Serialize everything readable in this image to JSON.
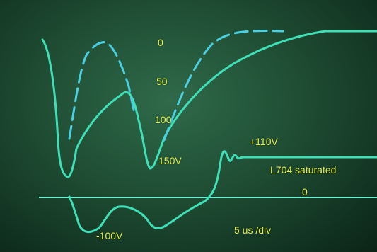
{
  "chart_data": {
    "type": "line",
    "grid": false,
    "colors": {
      "trace": "#3fe0b8",
      "trace_dashed": "#4ad0e0",
      "label": "#e3ee4a"
    },
    "series": [
      {
        "style": "solid",
        "x": [
          0.2,
          0.6,
          1.0,
          1.4,
          1.8,
          2.2,
          2.6,
          3.0,
          3.4,
          3.8,
          4.2,
          4.6,
          5.0,
          5.4,
          5.8,
          6.2,
          6.6,
          7.0,
          7.4,
          7.8,
          8.2,
          8.6,
          9.0,
          9.4,
          9.8
        ],
        "y": [
          -95,
          -95,
          -98,
          -95,
          -88,
          -93,
          -110,
          -120,
          -118,
          -112,
          -105,
          -95,
          -86,
          -72,
          -60,
          -50,
          -46,
          -46,
          -48,
          -50,
          -48,
          -47,
          -47,
          -47,
          -47
        ]
      },
      {
        "style": "solid",
        "x": [
          0.2,
          0.6,
          1.0,
          1.4,
          1.8,
          2.2,
          2.6,
          3.0,
          3.4,
          3.8,
          4.2,
          4.6,
          5.0,
          5.4,
          5.8,
          6.2,
          6.6,
          7.0,
          7.4,
          7.8,
          8.2,
          8.6,
          9.0,
          9.4,
          9.8
        ],
        "y": [
          -75,
          -20,
          -30,
          -25,
          -10,
          -5,
          -12,
          -18,
          -28,
          -22,
          -10,
          -50,
          -175,
          -90,
          -110,
          -105,
          -110,
          -110,
          -110,
          -110,
          -110,
          -110,
          -110,
          -110,
          -110
        ]
      },
      {
        "style": "solid",
        "x": [
          0.0,
          0.4,
          0.8,
          1.2,
          1.6,
          2.0,
          2.4,
          2.6,
          3.0,
          3.4,
          3.8,
          4.2,
          4.6,
          5.0,
          5.4,
          5.8,
          6.2,
          6.6,
          7.0,
          7.4,
          7.8,
          8.2,
          8.6,
          9.0,
          9.4,
          9.8
        ],
        "y": [
          160,
          175,
          110,
          70,
          60,
          70,
          150,
          155,
          100,
          70,
          45,
          30,
          20,
          12,
          8,
          4,
          0,
          0,
          0,
          0,
          0,
          0,
          0,
          0,
          0,
          0
        ]
      },
      {
        "style": "dashed",
        "x": [
          0.4,
          0.8,
          1.2,
          1.6,
          2.0,
          2.4,
          2.6,
          3.0,
          3.4,
          3.8,
          4.2
        ],
        "y": [
          175,
          90,
          10,
          -5,
          30,
          150,
          155,
          60,
          20,
          0,
          -5
        ]
      }
    ],
    "annotations": [
      "0",
      "50",
      "100",
      "150V",
      "+110V",
      "L704 saturated",
      "0",
      "-100V",
      "5 us /div"
    ]
  }
}
